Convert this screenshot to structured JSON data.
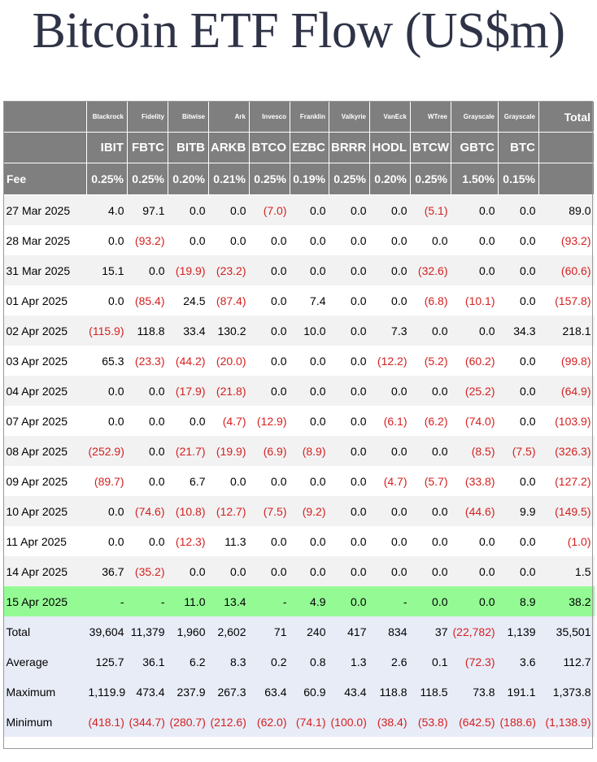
{
  "title": "Bitcoin ETF Flow (US$m)",
  "colors": {
    "header_bg": "#7f7f7f",
    "negative": "#d42020",
    "highlight": "#94fb94",
    "summary_bg": "#e8ecf7",
    "title": "#2f3347"
  },
  "issuers": [
    "Blackrock",
    "Fidelity",
    "Bitwise",
    "Ark",
    "Invesco",
    "Franklin",
    "Valkyrie",
    "VanEck",
    "WTree",
    "Grayscale",
    "Grayscale"
  ],
  "total_label": "Total",
  "tickers": [
    "IBIT",
    "FBTC",
    "BITB",
    "ARKB",
    "BTCO",
    "EZBC",
    "BRRR",
    "HODL",
    "BTCW",
    "GBTC",
    "BTC"
  ],
  "fee_label": "Fee",
  "fees": [
    "0.25%",
    "0.25%",
    "0.20%",
    "0.21%",
    "0.25%",
    "0.19%",
    "0.25%",
    "0.20%",
    "0.25%",
    "1.50%",
    "0.15%"
  ],
  "rows": [
    {
      "date": "27 Mar 2025",
      "values": [
        "4.0",
        "97.1",
        "0.0",
        "0.0",
        "(7.0)",
        "0.0",
        "0.0",
        "0.0",
        "(5.1)",
        "0.0",
        "0.0"
      ],
      "total": "89.0"
    },
    {
      "date": "28 Mar 2025",
      "values": [
        "0.0",
        "(93.2)",
        "0.0",
        "0.0",
        "0.0",
        "0.0",
        "0.0",
        "0.0",
        "0.0",
        "0.0",
        "0.0"
      ],
      "total": "(93.2)"
    },
    {
      "date": "31 Mar 2025",
      "values": [
        "15.1",
        "0.0",
        "(19.9)",
        "(23.2)",
        "0.0",
        "0.0",
        "0.0",
        "0.0",
        "(32.6)",
        "0.0",
        "0.0"
      ],
      "total": "(60.6)"
    },
    {
      "date": "01 Apr 2025",
      "values": [
        "0.0",
        "(85.4)",
        "24.5",
        "(87.4)",
        "0.0",
        "7.4",
        "0.0",
        "0.0",
        "(6.8)",
        "(10.1)",
        "0.0"
      ],
      "total": "(157.8)"
    },
    {
      "date": "02 Apr 2025",
      "values": [
        "(115.9)",
        "118.8",
        "33.4",
        "130.2",
        "0.0",
        "10.0",
        "0.0",
        "7.3",
        "0.0",
        "0.0",
        "34.3"
      ],
      "total": "218.1"
    },
    {
      "date": "03 Apr 2025",
      "values": [
        "65.3",
        "(23.3)",
        "(44.2)",
        "(20.0)",
        "0.0",
        "0.0",
        "0.0",
        "(12.2)",
        "(5.2)",
        "(60.2)",
        "0.0"
      ],
      "total": "(99.8)"
    },
    {
      "date": "04 Apr 2025",
      "values": [
        "0.0",
        "0.0",
        "(17.9)",
        "(21.8)",
        "0.0",
        "0.0",
        "0.0",
        "0.0",
        "0.0",
        "(25.2)",
        "0.0"
      ],
      "total": "(64.9)"
    },
    {
      "date": "07 Apr 2025",
      "values": [
        "0.0",
        "0.0",
        "0.0",
        "(4.7)",
        "(12.9)",
        "0.0",
        "0.0",
        "(6.1)",
        "(6.2)",
        "(74.0)",
        "0.0"
      ],
      "total": "(103.9)"
    },
    {
      "date": "08 Apr 2025",
      "values": [
        "(252.9)",
        "0.0",
        "(21.7)",
        "(19.9)",
        "(6.9)",
        "(8.9)",
        "0.0",
        "0.0",
        "0.0",
        "(8.5)",
        "(7.5)"
      ],
      "total": "(326.3)"
    },
    {
      "date": "09 Apr 2025",
      "values": [
        "(89.7)",
        "0.0",
        "6.7",
        "0.0",
        "0.0",
        "0.0",
        "0.0",
        "(4.7)",
        "(5.7)",
        "(33.8)",
        "0.0"
      ],
      "total": "(127.2)"
    },
    {
      "date": "10 Apr 2025",
      "values": [
        "0.0",
        "(74.6)",
        "(10.8)",
        "(12.7)",
        "(7.5)",
        "(9.2)",
        "0.0",
        "0.0",
        "0.0",
        "(44.6)",
        "9.9"
      ],
      "total": "(149.5)"
    },
    {
      "date": "11 Apr 2025",
      "values": [
        "0.0",
        "0.0",
        "(12.3)",
        "11.3",
        "0.0",
        "0.0",
        "0.0",
        "0.0",
        "0.0",
        "0.0",
        "0.0"
      ],
      "total": "(1.0)"
    },
    {
      "date": "14 Apr 2025",
      "values": [
        "36.7",
        "(35.2)",
        "0.0",
        "0.0",
        "0.0",
        "0.0",
        "0.0",
        "0.0",
        "0.0",
        "0.0",
        "0.0"
      ],
      "total": "1.5"
    },
    {
      "date": "15 Apr 2025",
      "values": [
        "-",
        "-",
        "11.0",
        "13.4",
        "-",
        "4.9",
        "0.0",
        "-",
        "0.0",
        "0.0",
        "8.9"
      ],
      "total": "38.2",
      "highlight": true
    }
  ],
  "summary": [
    {
      "label": "Total",
      "values": [
        "39,604",
        "11,379",
        "1,960",
        "2,602",
        "71",
        "240",
        "417",
        "834",
        "37",
        "(22,782)",
        "1,139"
      ],
      "total": "35,501"
    },
    {
      "label": "Average",
      "values": [
        "125.7",
        "36.1",
        "6.2",
        "8.3",
        "0.2",
        "0.8",
        "1.3",
        "2.6",
        "0.1",
        "(72.3)",
        "3.6"
      ],
      "total": "112.7"
    },
    {
      "label": "Maximum",
      "values": [
        "1,119.9",
        "473.4",
        "237.9",
        "267.3",
        "63.4",
        "60.9",
        "43.4",
        "118.8",
        "118.5",
        "73.8",
        "191.1"
      ],
      "total": "1,373.8"
    },
    {
      "label": "Minimum",
      "values": [
        "(418.1)",
        "(344.7)",
        "(280.7)",
        "(212.6)",
        "(62.0)",
        "(74.1)",
        "(100.0)",
        "(38.4)",
        "(53.8)",
        "(642.5)",
        "(188.6)"
      ],
      "total": "(1,138.9)"
    }
  ]
}
